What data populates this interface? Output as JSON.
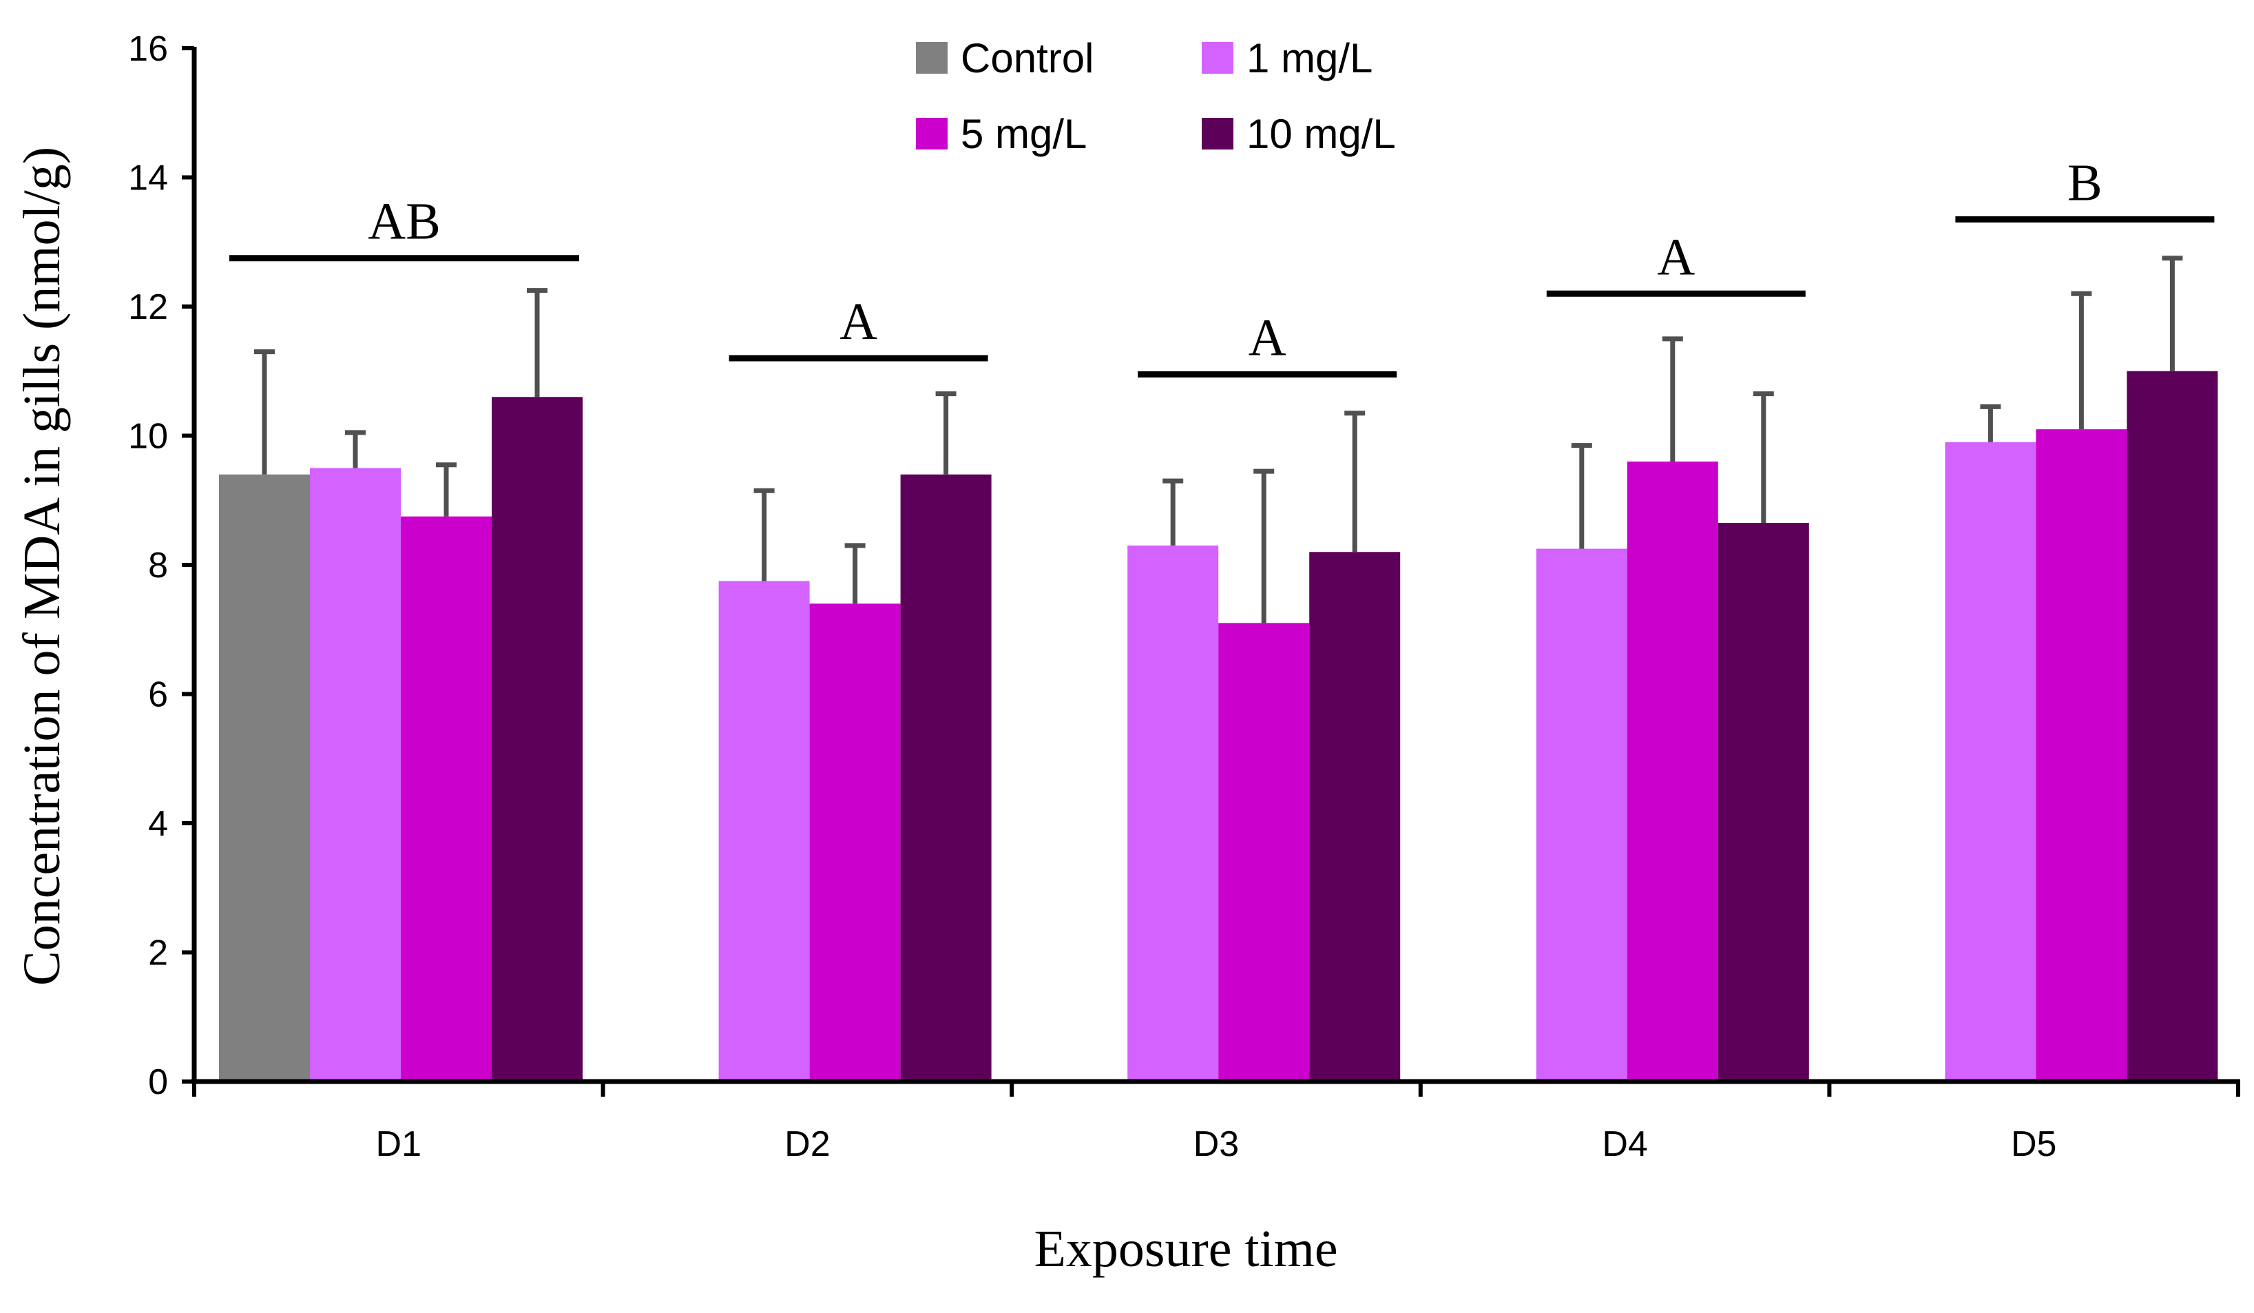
{
  "chart_data": {
    "type": "bar",
    "title": "",
    "xlabel": "Exposure time",
    "ylabel": "Concentration of MDA in gills (nmol/g)",
    "ylim": [
      0,
      16
    ],
    "yticks": [
      "0",
      "2",
      "4",
      "6",
      "8",
      "10",
      "12",
      "14",
      "16"
    ],
    "categories": [
      "D1",
      "D2",
      "D3",
      "D4",
      "D5"
    ],
    "grid": false,
    "legend_position": "top-center",
    "series": [
      {
        "name": "Control",
        "color": "#808080",
        "values": [
          9.4,
          null,
          null,
          null,
          null
        ],
        "errors": [
          1.9,
          null,
          null,
          null,
          null
        ]
      },
      {
        "name": "1 mg/L",
        "color": "#d462ff",
        "values": [
          9.5,
          7.75,
          8.3,
          8.25,
          9.9
        ],
        "errors": [
          0.55,
          1.4,
          1.0,
          1.6,
          0.55
        ]
      },
      {
        "name": "5 mg/L",
        "color": "#cc00cc",
        "values": [
          8.75,
          7.4,
          7.1,
          9.6,
          10.1
        ],
        "errors": [
          0.8,
          0.9,
          2.35,
          1.9,
          2.1
        ]
      },
      {
        "name": "10 mg/L",
        "color": "#5c0059",
        "values": [
          10.6,
          9.4,
          8.2,
          8.65,
          11.0
        ],
        "errors": [
          1.65,
          1.25,
          2.15,
          2.0,
          1.75
        ]
      }
    ],
    "annotations": [
      {
        "category": "D1",
        "text": "AB",
        "line_y": 12.75
      },
      {
        "category": "D2",
        "text": "A",
        "line_y": 11.2
      },
      {
        "category": "D3",
        "text": "A",
        "line_y": 10.95
      },
      {
        "category": "D4",
        "text": "A",
        "line_y": 12.2
      },
      {
        "category": "D5",
        "text": "B",
        "line_y": 13.35
      }
    ]
  }
}
